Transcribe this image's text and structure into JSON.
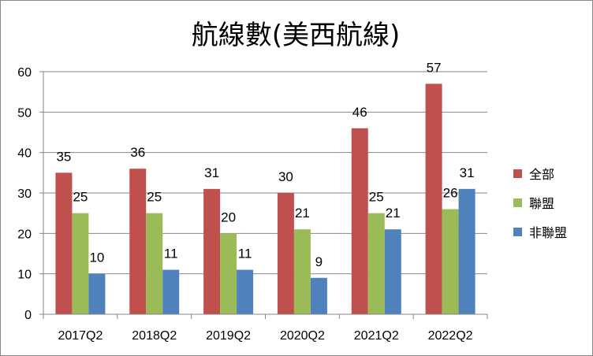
{
  "chart_data": {
    "type": "bar",
    "title": "航線數(美西航線)",
    "xlabel": "",
    "ylabel": "",
    "categories": [
      "2017Q2",
      "2018Q2",
      "2019Q2",
      "2020Q2",
      "2021Q2",
      "2022Q2"
    ],
    "series": [
      {
        "name": "全部",
        "color": "#C0504D",
        "values": [
          35,
          36,
          31,
          30,
          46,
          57
        ]
      },
      {
        "name": "聯盟",
        "color": "#9BBB59",
        "values": [
          25,
          25,
          20,
          21,
          25,
          26
        ]
      },
      {
        "name": "非聯盟",
        "color": "#4F81BD",
        "values": [
          10,
          11,
          11,
          9,
          21,
          31
        ]
      }
    ],
    "ylim": [
      0,
      60
    ],
    "yticks": [
      0,
      10,
      20,
      30,
      40,
      50,
      60
    ],
    "grid": true,
    "data_labels": true,
    "legend_position": "right"
  }
}
